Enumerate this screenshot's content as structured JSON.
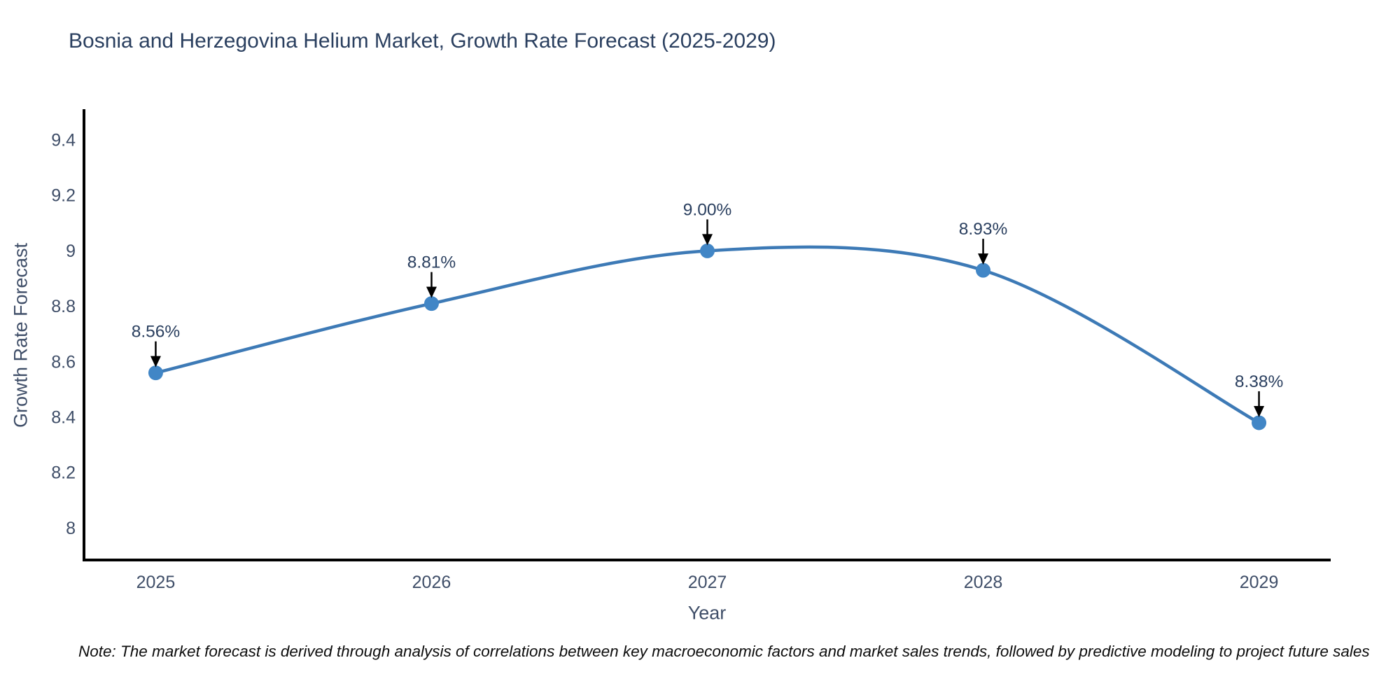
{
  "note": {
    "text": "Note: The market forecast is derived through analysis of correlations between key macroeconomic factors and market sales trends, followed by predictive modeling to project future sales"
  },
  "chart_data": {
    "type": "line",
    "title": "Bosnia and Herzegovina Helium Market, Growth Rate Forecast (2025-2029)",
    "xlabel": "Year",
    "ylabel": "Growth Rate Forecast",
    "categories": [
      "2025",
      "2026",
      "2027",
      "2028",
      "2029"
    ],
    "series": [
      {
        "name": "Growth Rate Forecast",
        "values": [
          8.56,
          8.81,
          9.0,
          8.93,
          8.38
        ],
        "point_labels": [
          "8.56%",
          "8.81%",
          "9.00%",
          "8.93%",
          "8.38%"
        ]
      }
    ],
    "ytick_labels": [
      "8",
      "8.2",
      "8.4",
      "8.6",
      "8.8",
      "9",
      "9.2",
      "9.4"
    ],
    "ytick_values": [
      8,
      8.2,
      8.4,
      8.6,
      8.8,
      9,
      9.2,
      9.4
    ],
    "ylim": [
      7.885,
      9.506
    ],
    "line_shape": "spline",
    "grid": false,
    "legend": "none",
    "annotations_have_arrows": true,
    "colors": {
      "line": "#3d7ab6",
      "marker": "#4186c6",
      "axis": "#000000",
      "title_text": "#2a3f5f",
      "tick_text": "#3f4e68",
      "label_text": "#2a3f5f",
      "arrow": "#000000",
      "background": "#ffffff"
    }
  }
}
